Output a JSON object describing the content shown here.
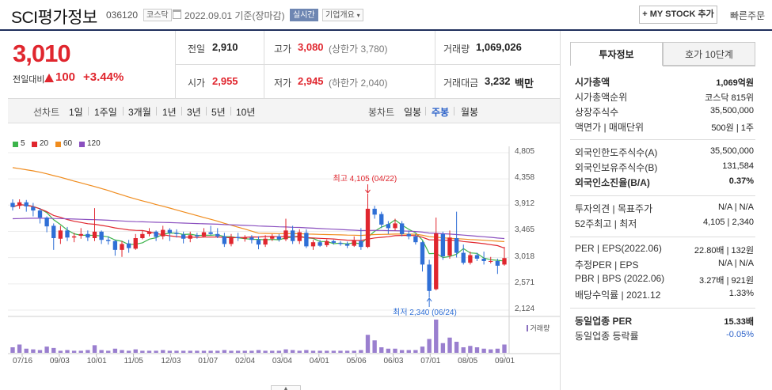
{
  "header": {
    "name": "SCI평가정보",
    "code": "036120",
    "market": "코스닥",
    "date": "2022.09.01 기준(장마감)",
    "realtime": "실시간",
    "overview": "기업개요",
    "mystock": "+ MY STOCK 추가",
    "quick_order": "빠른주문"
  },
  "price": {
    "current": "3,010",
    "change_label": "전일대비",
    "change": "100",
    "change_pct": "+3.44%",
    "color_up": "#e0262e"
  },
  "summary": {
    "prev_label": "전일",
    "prev": "2,910",
    "high_label": "고가",
    "high": "3,080",
    "upper_limit": "(상한가 3,780)",
    "volume_label": "거래량",
    "volume": "1,069,026",
    "open_label": "시가",
    "open": "2,955",
    "low_label": "저가",
    "low": "2,945",
    "lower_limit": "(하한가 2,040)",
    "amount_label": "거래대금",
    "amount": "3,232",
    "amount_unit": "백만"
  },
  "period_bar": {
    "chart_type_label": "선차트",
    "periods": [
      "1일",
      "1주일",
      "3개월",
      "1년",
      "3년",
      "5년",
      "10년"
    ],
    "candle_label": "봉차트",
    "candles": [
      "일봉",
      "주봉",
      "월봉"
    ],
    "active_candle": "주봉"
  },
  "legend": [
    {
      "name": "5",
      "color": "#3cb44b"
    },
    {
      "name": "20",
      "color": "#e0262e"
    },
    {
      "name": "60",
      "color": "#f08c1e"
    },
    {
      "name": "120",
      "color": "#8a4fbf"
    }
  ],
  "chart_data": {
    "type": "candlestick",
    "y_ticks": [
      "4,805",
      "4,358",
      "3,912",
      "3,465",
      "3,018",
      "2,571",
      "2,124"
    ],
    "ylim": [
      2124,
      4805
    ],
    "x_ticks": [
      "07/16",
      "09/03",
      "10/01",
      "11/05",
      "12/03",
      "01/07",
      "02/04",
      "03/04",
      "04/01",
      "05/06",
      "06/03",
      "07/01",
      "08/05",
      "09/01"
    ],
    "high_annotation": "최고 4,105 (04/22)",
    "low_annotation": "최저 2,340 (06/24)",
    "volume_label": "거래량",
    "candles": [
      [
        3950,
        3880,
        4010,
        3820
      ],
      [
        3900,
        3960,
        4010,
        3850
      ],
      [
        3960,
        3890,
        4000,
        3800
      ],
      [
        3880,
        3820,
        3950,
        3720
      ],
      [
        3820,
        3700,
        3860,
        3600
      ],
      [
        3700,
        3550,
        3720,
        3450
      ],
      [
        3560,
        3350,
        3600,
        3150
      ],
      [
        3340,
        3480,
        3560,
        3250
      ],
      [
        3480,
        3360,
        3540,
        3300
      ],
      [
        3360,
        3380,
        3440,
        3280
      ],
      [
        3390,
        3420,
        3520,
        3340
      ],
      [
        3420,
        3360,
        3480,
        3300
      ],
      [
        3350,
        3460,
        3860,
        3300
      ],
      [
        3460,
        3320,
        3480,
        3250
      ],
      [
        3320,
        3300,
        3380,
        3240
      ],
      [
        3300,
        3150,
        3320,
        3050
      ],
      [
        3150,
        3250,
        3300,
        3030
      ],
      [
        3260,
        3180,
        3320,
        3100
      ],
      [
        3170,
        3350,
        3420,
        3150
      ],
      [
        3350,
        3420,
        3480,
        3330
      ],
      [
        3420,
        3460,
        3520,
        3380
      ],
      [
        3460,
        3370,
        3480,
        3300
      ],
      [
        3380,
        3490,
        3560,
        3330
      ],
      [
        3490,
        3440,
        3520,
        3300
      ],
      [
        3440,
        3420,
        3500,
        3360
      ],
      [
        3410,
        3340,
        3460,
        3260
      ],
      [
        3340,
        3400,
        3460,
        3280
      ],
      [
        3400,
        3380,
        3440,
        3340
      ],
      [
        3380,
        3450,
        3520,
        3360
      ],
      [
        3450,
        3420,
        3560,
        3400
      ],
      [
        3420,
        3380,
        3520,
        3350
      ],
      [
        3380,
        3250,
        3440,
        3200
      ],
      [
        3250,
        3370,
        3420,
        3210
      ],
      [
        3370,
        3350,
        3440,
        3300
      ],
      [
        3340,
        3360,
        3400,
        3290
      ],
      [
        3360,
        3320,
        3400,
        3260
      ],
      [
        3320,
        3240,
        3380,
        3160
      ],
      [
        3240,
        3340,
        3400,
        3200
      ],
      [
        3340,
        3380,
        3420,
        3300
      ],
      [
        3380,
        3330,
        3420,
        3290
      ],
      [
        3330,
        3480,
        3680,
        3300
      ],
      [
        3480,
        3300,
        3560,
        3250
      ],
      [
        3300,
        3450,
        3500,
        3250
      ],
      [
        3440,
        3210,
        3500,
        3180
      ],
      [
        3210,
        3280,
        3320,
        3150
      ],
      [
        3280,
        3220,
        3320,
        3200
      ],
      [
        3230,
        3300,
        3330,
        3200
      ],
      [
        3300,
        3270,
        3320,
        3240
      ],
      [
        3270,
        3250,
        3300,
        3220
      ],
      [
        3250,
        3220,
        3290,
        3180
      ],
      [
        3220,
        3310,
        3380,
        3200
      ],
      [
        3300,
        3200,
        3520,
        3150
      ],
      [
        3200,
        3850,
        4105,
        3180
      ],
      [
        3850,
        3750,
        3900,
        3680
      ],
      [
        3760,
        3580,
        3800,
        3520
      ],
      [
        3590,
        3520,
        3640,
        3420
      ],
      [
        3520,
        3600,
        3680,
        3480
      ],
      [
        3600,
        3420,
        3640,
        3380
      ],
      [
        3420,
        3380,
        3480,
        3330
      ],
      [
        3380,
        3280,
        3420,
        3240
      ],
      [
        3280,
        2900,
        3300,
        2780
      ],
      [
        2900,
        2450,
        2980,
        2340
      ],
      [
        2480,
        3430,
        3700,
        2460
      ],
      [
        3420,
        3040,
        3460,
        2980
      ],
      [
        3050,
        3360,
        3480,
        3000
      ],
      [
        3350,
        3100,
        3800,
        3020
      ],
      [
        3100,
        2930,
        3240,
        2900
      ],
      [
        2930,
        3060,
        3120,
        2900
      ],
      [
        3060,
        3000,
        3100,
        2960
      ],
      [
        3000,
        2960,
        3120,
        2900
      ],
      [
        2960,
        2960,
        3030,
        2920
      ],
      [
        2960,
        2880,
        3000,
        2740
      ],
      [
        2900,
        3010,
        3200,
        2880
      ]
    ],
    "volumes": [
      8,
      12,
      6,
      5,
      4,
      9,
      7,
      3,
      4,
      3,
      3,
      4,
      11,
      4,
      3,
      6,
      4,
      3,
      5,
      3,
      3,
      3,
      4,
      3,
      3,
      3,
      3,
      3,
      3,
      3,
      3,
      4,
      3,
      3,
      3,
      3,
      4,
      3,
      3,
      3,
      5,
      4,
      3,
      4,
      3,
      3,
      3,
      3,
      3,
      3,
      3,
      4,
      26,
      18,
      8,
      6,
      6,
      4,
      4,
      4,
      9,
      20,
      48,
      14,
      22,
      16,
      8,
      10,
      8,
      6,
      5,
      6,
      12
    ]
  },
  "right_panel": {
    "tabs": [
      "투자정보",
      "호가 10단계"
    ],
    "rows": [
      {
        "label": "시가총액",
        "value": "1,069억원",
        "bold": true
      },
      {
        "label": "시가총액순위",
        "value": "코스닥 815위"
      },
      {
        "label": "상장주식수",
        "value": "35,500,000"
      },
      {
        "label": "액면가 | 매매단위",
        "value": "500원 | 1주"
      },
      {
        "label": "외국인한도주식수(A)",
        "value": "35,500,000"
      },
      {
        "label": "외국인보유주식수(B)",
        "value": "131,584"
      },
      {
        "label": "외국인소진율(B/A)",
        "value": "0.37%",
        "bold": true
      },
      {
        "label": "투자의견 | 목표주가",
        "value": "N/A | N/A"
      },
      {
        "label": "52주최고 | 최저",
        "value": "4,105 | 2,340"
      },
      {
        "label": "PER | EPS(2022.06)",
        "value": "22.80배 | 132원"
      },
      {
        "label": "추정PER | EPS",
        "value": "N/A | N/A"
      },
      {
        "label": "PBR | BPS (2022.06)",
        "value": "3.27배 | 921원"
      },
      {
        "label": "배당수익률 | 2021.12",
        "value": "1.33%"
      },
      {
        "label": "동일업종 PER",
        "value": "15.33배",
        "bold": true
      },
      {
        "label": "동일업종 등락률",
        "value": "-0.05%",
        "blue": true
      }
    ]
  }
}
